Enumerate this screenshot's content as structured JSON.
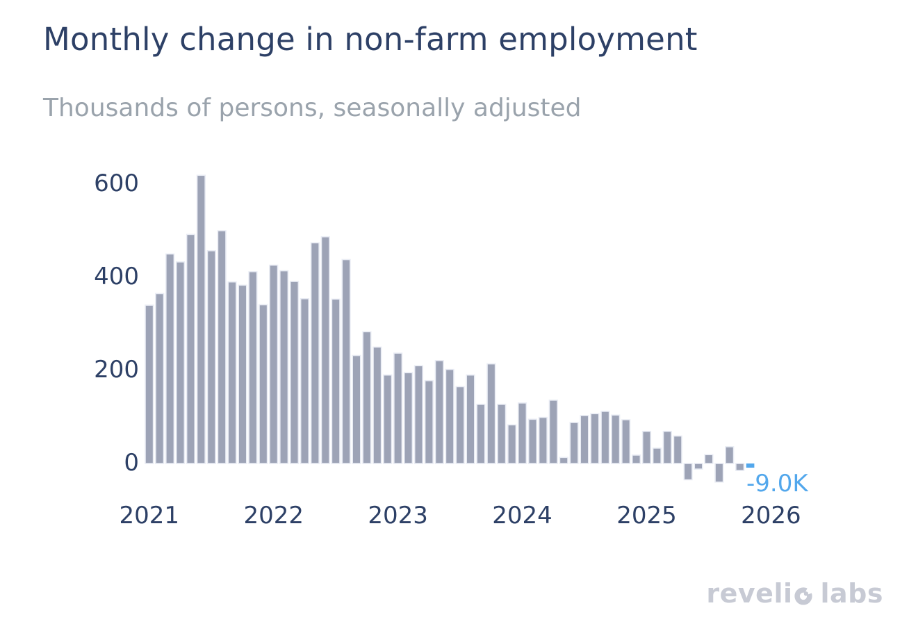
{
  "header": {
    "title": "Monthly change in non-farm employment",
    "subtitle": "Thousands of persons, seasonally adjusted"
  },
  "chart_data": {
    "type": "bar",
    "title": "Monthly change in non-farm employment",
    "subtitle": "Thousands of persons, seasonally adjusted",
    "unit": "thousands of persons",
    "x": [
      "2021-01",
      "2021-02",
      "2021-03",
      "2021-04",
      "2021-05",
      "2021-06",
      "2021-07",
      "2021-08",
      "2021-09",
      "2021-10",
      "2021-11",
      "2021-12",
      "2022-01",
      "2022-02",
      "2022-03",
      "2022-04",
      "2022-05",
      "2022-06",
      "2022-07",
      "2022-08",
      "2022-09",
      "2022-10",
      "2022-11",
      "2022-12",
      "2023-01",
      "2023-02",
      "2023-03",
      "2023-04",
      "2023-05",
      "2023-06",
      "2023-07",
      "2023-08",
      "2023-09",
      "2023-10",
      "2023-11",
      "2023-12",
      "2024-01",
      "2024-02",
      "2024-03",
      "2024-04",
      "2024-05",
      "2024-06",
      "2024-07",
      "2024-08",
      "2024-09",
      "2024-10",
      "2024-11",
      "2024-12",
      "2025-01",
      "2025-02",
      "2025-03",
      "2025-04",
      "2025-05",
      "2025-06",
      "2025-07",
      "2025-08",
      "2025-09",
      "2025-10",
      "2025-11"
    ],
    "values": [
      340,
      365,
      450,
      433,
      492,
      619,
      457,
      500,
      390,
      383,
      412,
      341,
      426,
      414,
      391,
      354,
      474,
      487,
      353,
      438,
      232,
      283,
      250,
      190,
      237,
      195,
      210,
      178,
      221,
      202,
      165,
      190,
      127,
      214,
      127,
      83,
      130,
      95,
      99,
      136,
      13,
      88,
      103,
      107,
      112,
      104,
      94,
      18,
      69,
      33,
      69,
      59,
      -35,
      -12,
      19,
      -40,
      36,
      -15,
      -9
    ],
    "y_ticks": [
      600,
      400,
      200,
      0
    ],
    "x_tick_labels": [
      "2021",
      "2022",
      "2023",
      "2024",
      "2025",
      "2026"
    ],
    "x_tick_month_index": [
      0,
      12,
      24,
      36,
      48,
      60
    ],
    "ylim": [
      -60,
      650
    ],
    "grid": false,
    "legend": false,
    "bar_color": "#9da3b6",
    "bar_outline": "#e9ecf4",
    "highlight_index": 58,
    "highlight_color": "#52a7ec",
    "annotation": {
      "text": "-9.0K",
      "color": "#52a7ec"
    }
  },
  "colors": {
    "title_navy": "#2d4066",
    "subtitle_gray": "#9aa3ac",
    "logo_gray": "#c7cad4",
    "background": "#ffffff"
  },
  "footer": {
    "logo_full": "revelio labs",
    "logo_left": "reveli",
    "logo_right": "labs"
  }
}
